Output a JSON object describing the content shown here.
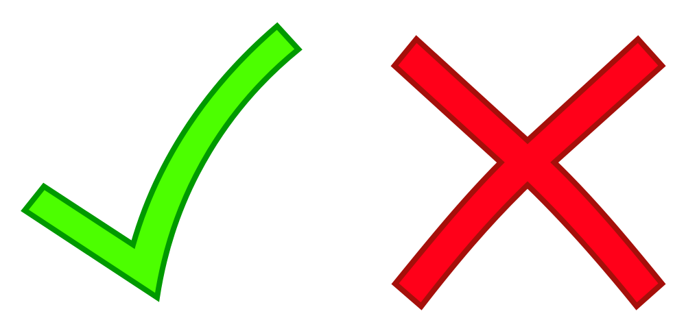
{
  "icons": {
    "check": {
      "icon": "check-icon",
      "fill": "#4CFF00",
      "stroke": "#009900"
    },
    "cross": {
      "icon": "cross-icon",
      "fill": "#FF0019",
      "stroke": "#A50F0A"
    }
  }
}
